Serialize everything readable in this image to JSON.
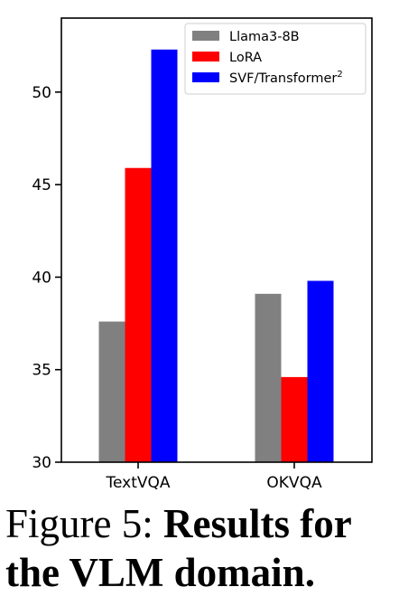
{
  "chart_data": {
    "type": "bar",
    "categories": [
      "TextVQA",
      "OKVQA"
    ],
    "series": [
      {
        "name": "Llama3-8B",
        "color": "#808080",
        "values": [
          37.6,
          39.1
        ]
      },
      {
        "name": "LoRA",
        "color": "#ff0000",
        "values": [
          45.9,
          34.6
        ]
      },
      {
        "name": "SVF/Transformer",
        "name_superscript": "2",
        "color": "#0000ff",
        "values": [
          52.3,
          39.8
        ]
      }
    ],
    "ylim": [
      30,
      54
    ],
    "yticks": [
      30,
      35,
      40,
      45,
      50
    ],
    "ytick_labels": [
      "30",
      "35",
      "40",
      "45",
      "50"
    ],
    "legend_position": "top-right",
    "grid": false
  },
  "caption": {
    "label": "Figure 5:",
    "bold_text": "Results for the VLM domain."
  }
}
